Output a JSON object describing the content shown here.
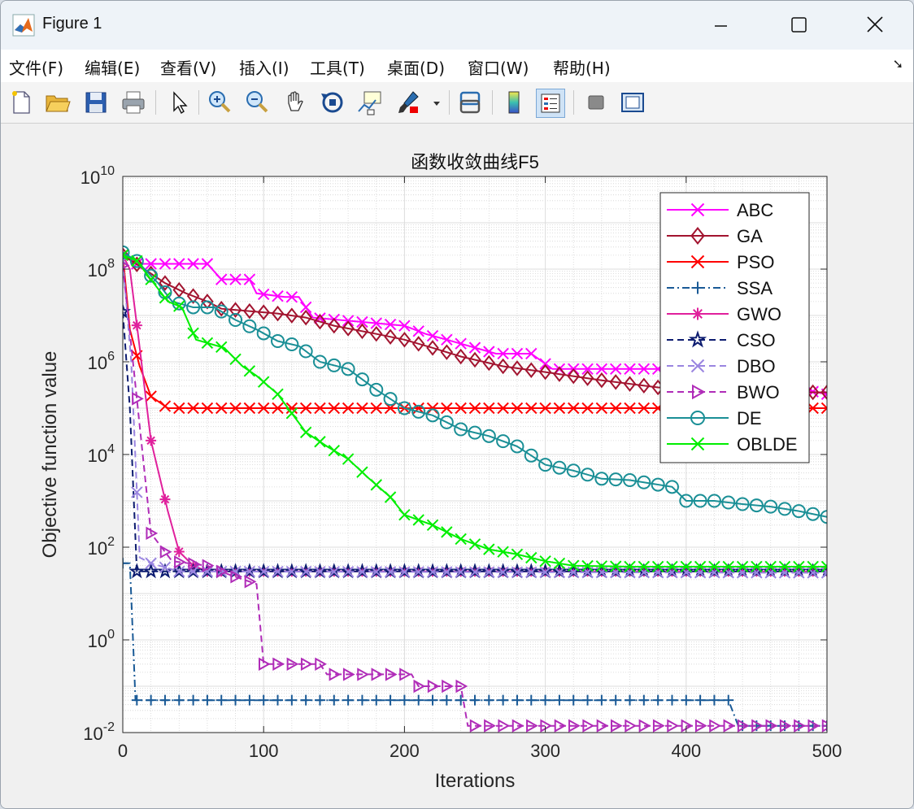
{
  "window": {
    "title": "Figure 1"
  },
  "menu": [
    "文件(F)",
    "编辑(E)",
    "查看(V)",
    "插入(I)",
    "工具(T)",
    "桌面(D)",
    "窗口(W)",
    "帮助(H)"
  ],
  "toolbar": {
    "icons": [
      "new-file-icon",
      "open-folder-icon",
      "save-icon",
      "print-icon",
      "pointer-icon",
      "zoom-in-icon",
      "zoom-out-icon",
      "pan-hand-icon",
      "rotate-3d-icon",
      "data-cursor-icon",
      "brush-icon",
      "link-plot-icon",
      "colorbar-icon",
      "legend-icon",
      "hide-plot-tools-icon",
      "show-plot-tools-icon"
    ]
  },
  "chart_data": {
    "type": "line",
    "title": "函数收敛曲线F5",
    "xlabel": "Iterations",
    "ylabel": "Objective function value",
    "xlim": [
      0,
      500
    ],
    "ylim": [
      0.01,
      10000000000
    ],
    "yscale": "log",
    "xticks": [
      "0",
      "100",
      "200",
      "300",
      "400",
      "500"
    ],
    "yticks": [
      {
        "base": "10",
        "exp": "-2"
      },
      {
        "base": "10",
        "exp": "0"
      },
      {
        "base": "10",
        "exp": "2"
      },
      {
        "base": "10",
        "exp": "4"
      },
      {
        "base": "10",
        "exp": "6"
      },
      {
        "base": "10",
        "exp": "8"
      },
      {
        "base": "10",
        "exp": "10"
      }
    ],
    "grid": true,
    "legend_position": "top-right",
    "series": [
      {
        "name": "ABC",
        "color": "#ff00ff",
        "style": "solid",
        "marker": "x",
        "points": [
          [
            0,
            200000000.0
          ],
          [
            10,
            130000000.0
          ],
          [
            60,
            130000000.0
          ],
          [
            70,
            60000000.0
          ],
          [
            90,
            60000000.0
          ],
          [
            95,
            30000000.0
          ],
          [
            115,
            25000000.0
          ],
          [
            125,
            25000000.0
          ],
          [
            135,
            9000000.0
          ],
          [
            200,
            6000000.0
          ],
          [
            215,
            4000000.0
          ],
          [
            230,
            3000000.0
          ],
          [
            265,
            1500000.0
          ],
          [
            290,
            1500000.0
          ],
          [
            305,
            700000.0
          ],
          [
            400,
            700000.0
          ],
          [
            500,
            200000.0
          ]
        ]
      },
      {
        "name": "GA",
        "color": "#a2142f",
        "style": "solid",
        "marker": "diamond",
        "points": [
          [
            0,
            200000000.0
          ],
          [
            20,
            80000000.0
          ],
          [
            30,
            50000000.0
          ],
          [
            45,
            30000000.0
          ],
          [
            60,
            20000000.0
          ],
          [
            70,
            14000000.0
          ],
          [
            110,
            11000000.0
          ],
          [
            130,
            9000000.0
          ],
          [
            150,
            6000000.0
          ],
          [
            180,
            4000000.0
          ],
          [
            200,
            3000000.0
          ],
          [
            220,
            2000000.0
          ],
          [
            240,
            1300000.0
          ],
          [
            270,
            800000.0
          ],
          [
            300,
            600000.0
          ],
          [
            340,
            400000.0
          ],
          [
            380,
            280000.0
          ],
          [
            420,
            250000.0
          ],
          [
            470,
            220000.0
          ],
          [
            500,
            220000.0
          ]
        ]
      },
      {
        "name": "PSO",
        "color": "#ff0000",
        "style": "solid",
        "marker": "x",
        "points": [
          [
            0,
            200000000.0
          ],
          [
            5,
            5000000.0
          ],
          [
            12,
            800000.0
          ],
          [
            20,
            180000.0
          ],
          [
            32,
            100000.0
          ],
          [
            500,
            100000.0
          ]
        ]
      },
      {
        "name": "SSA",
        "color": "#1a5a96",
        "style": "dashdot",
        "marker": "plus",
        "points": [
          [
            0,
            45
          ],
          [
            5,
            45
          ],
          [
            9,
            0.05
          ],
          [
            430,
            0.05
          ],
          [
            437,
            0.014
          ],
          [
            500,
            0.014
          ]
        ]
      },
      {
        "name": "GWO",
        "color": "#e0209c",
        "style": "solid",
        "marker": "star",
        "points": [
          [
            0,
            200000000.0
          ],
          [
            5,
            100000000.0
          ],
          [
            12,
            2000000.0
          ],
          [
            20,
            20000.0
          ],
          [
            32,
            600
          ],
          [
            40,
            80
          ],
          [
            50,
            40
          ],
          [
            60,
            30
          ],
          [
            500,
            30
          ]
        ]
      },
      {
        "name": "CSO",
        "color": "#0d1c70",
        "style": "dashed",
        "marker": "pentagram",
        "points": [
          [
            0,
            12000000.0
          ],
          [
            5,
            100000.0
          ],
          [
            10,
            30
          ],
          [
            500,
            30
          ]
        ]
      },
      {
        "name": "DBO",
        "color": "#9a85e0",
        "style": "dashed",
        "marker": "x",
        "points": [
          [
            0,
            150000000.0
          ],
          [
            6,
            1000000.0
          ],
          [
            12,
            60
          ],
          [
            20,
            45
          ],
          [
            40,
            30
          ],
          [
            500,
            28
          ]
        ]
      },
      {
        "name": "BWO",
        "color": "#b02cb8",
        "style": "dashed",
        "marker": "triangle-right",
        "points": [
          [
            0,
            120000000.0
          ],
          [
            10,
            160000.0
          ],
          [
            20,
            200
          ],
          [
            35,
            50
          ],
          [
            60,
            40
          ],
          [
            75,
            26
          ],
          [
            95,
            16
          ],
          [
            100,
            0.3
          ],
          [
            140,
            0.3
          ],
          [
            145,
            0.18
          ],
          [
            205,
            0.18
          ],
          [
            210,
            0.1
          ],
          [
            240,
            0.1
          ],
          [
            245,
            0.014
          ],
          [
            500,
            0.014
          ]
        ]
      },
      {
        "name": "DE",
        "color": "#1a8f96",
        "style": "solid",
        "marker": "circle",
        "points": [
          [
            0,
            230000000.0
          ],
          [
            10,
            150000000.0
          ],
          [
            25,
            50000000.0
          ],
          [
            35,
            20000000.0
          ],
          [
            50,
            15000000.0
          ],
          [
            65,
            15000000.0
          ],
          [
            80,
            8000000.0
          ],
          [
            95,
            5000000.0
          ],
          [
            110,
            2800000.0
          ],
          [
            125,
            2200000.0
          ],
          [
            140,
            1000000.0
          ],
          [
            160,
            700000.0
          ],
          [
            180,
            250000.0
          ],
          [
            200,
            100000.0
          ],
          [
            220,
            70000.0
          ],
          [
            240,
            35000.0
          ],
          [
            260,
            25000.0
          ],
          [
            280,
            15000.0
          ],
          [
            300,
            6000.0
          ],
          [
            320,
            4500.0
          ],
          [
            340,
            3000.0
          ],
          [
            360,
            2800.0
          ],
          [
            390,
            2000.0
          ],
          [
            400,
            1000.0
          ],
          [
            420,
            1000.0
          ],
          [
            440,
            850
          ],
          [
            460,
            750
          ],
          [
            480,
            600
          ],
          [
            500,
            450
          ]
        ]
      },
      {
        "name": "OBLDE",
        "color": "#00ee00",
        "style": "solid",
        "marker": "x",
        "points": [
          [
            0,
            200000000.0
          ],
          [
            10,
            150000000.0
          ],
          [
            20,
            60000000.0
          ],
          [
            32,
            20000000.0
          ],
          [
            42,
            15000000.0
          ],
          [
            52,
            3000000.0
          ],
          [
            72,
            2000000.0
          ],
          [
            85,
            800000.0
          ],
          [
            95,
            500000.0
          ],
          [
            110,
            200000.0
          ],
          [
            130,
            30000.0
          ],
          [
            145,
            15000.0
          ],
          [
            160,
            8000.0
          ],
          [
            175,
            3000.0
          ],
          [
            190,
            1200.0
          ],
          [
            200,
            500
          ],
          [
            220,
            300
          ],
          [
            240,
            150
          ],
          [
            260,
            90
          ],
          [
            280,
            70
          ],
          [
            300,
            50
          ],
          [
            320,
            40
          ],
          [
            360,
            38
          ],
          [
            500,
            38
          ]
        ]
      }
    ]
  }
}
